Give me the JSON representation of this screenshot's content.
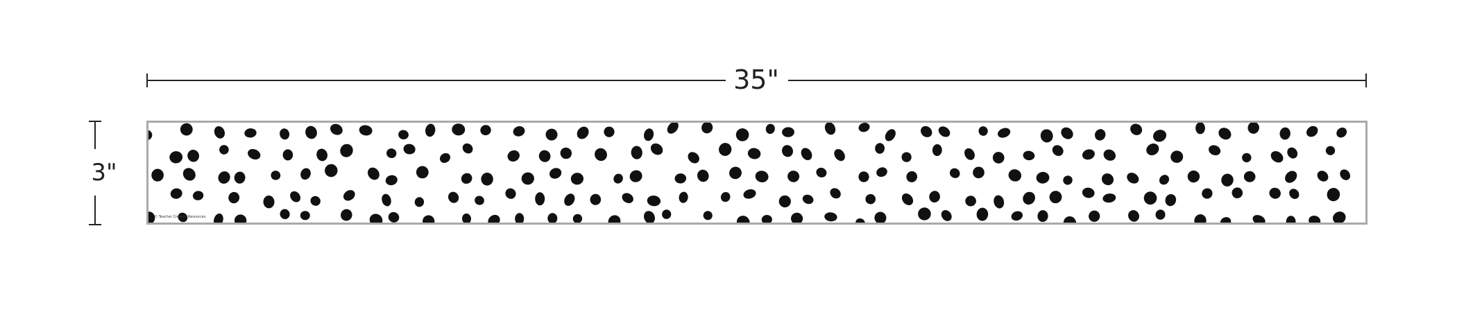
{
  "dimensions": {
    "width_label": "35\"",
    "height_label": "3\""
  },
  "strip": {
    "background_color": "#ffffff",
    "border_color": "#a9a9a9",
    "dot_color": "#111111",
    "pattern_icon": "polka-dot-pattern",
    "copyright": "© Teacher Created Resources"
  }
}
